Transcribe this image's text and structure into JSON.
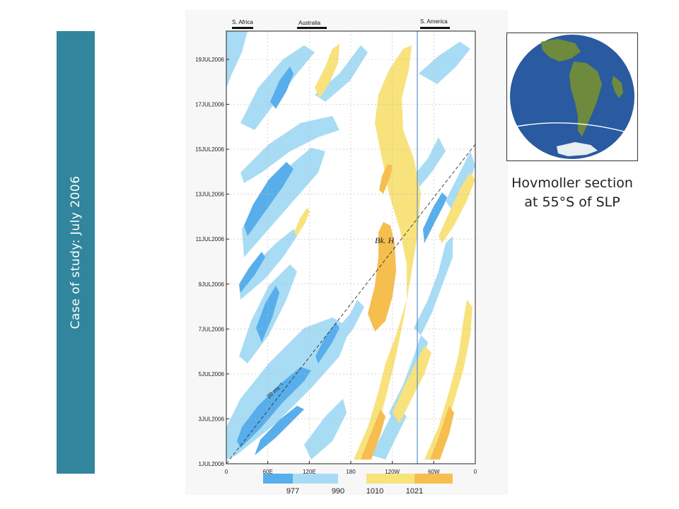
{
  "slide": {
    "side_title": "Case of study: July 2006",
    "caption_line1": "Hovmoller section",
    "caption_line2": "at 55°S of SLP"
  },
  "hovmoller": {
    "continents": [
      "S. Africa",
      "Australia",
      "S. America"
    ],
    "y_ticks": [
      "1JUL2006",
      "3JUL2006",
      "5JUL2006",
      "7JUL2006",
      "9JUL2006",
      "11JUL2006",
      "13JUL2006",
      "15JUL2006",
      "17JUL2006",
      "19JUL2006"
    ],
    "x_ticks": [
      "0",
      "60E",
      "120E",
      "180",
      "120W",
      "60W",
      "0"
    ],
    "annotations": {
      "block": "Bk. H",
      "speed": "20 ms⁻¹"
    },
    "legend": {
      "labels": [
        "977",
        "990",
        "1010",
        "1021"
      ],
      "colors": {
        "very_low": "#58aeea",
        "low": "#a8dcf4",
        "high": "#f8e27c",
        "very_high": "#f6be4e"
      }
    }
  },
  "globe": {
    "colors": {
      "ocean": "#2a5aa0",
      "land": "#6e8a3c",
      "ice": "#e8eef2",
      "line": "#ffffff"
    }
  }
}
